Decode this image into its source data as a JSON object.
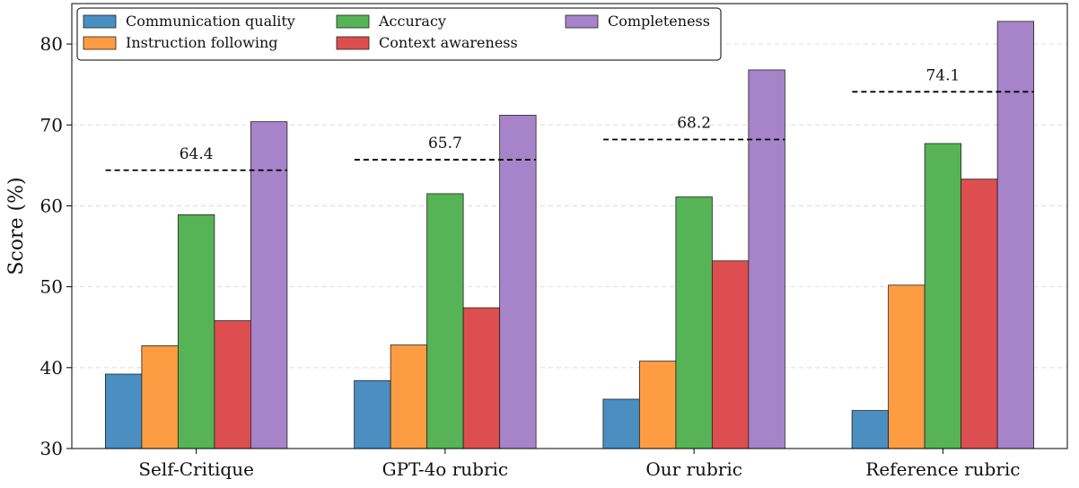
{
  "chart_data": {
    "type": "bar",
    "title": "",
    "xlabel": "",
    "ylabel": "Score (%)",
    "ylim": [
      30,
      85
    ],
    "yticks": [
      30,
      40,
      50,
      60,
      70,
      80
    ],
    "grid": "horizontal dashed",
    "legend_position": "top-left",
    "categories": [
      "Self-Critique",
      "GPT-4o rubric",
      "Our rubric",
      "Reference rubric"
    ],
    "series": [
      {
        "name": "Communication quality",
        "color": "#4a8ec2",
        "values": [
          39.2,
          38.4,
          36.1,
          34.7
        ]
      },
      {
        "name": "Instruction following",
        "color": "#fd9c42",
        "values": [
          42.7,
          42.8,
          40.8,
          50.2
        ]
      },
      {
        "name": "Accuracy",
        "color": "#56b356",
        "values": [
          58.9,
          61.5,
          61.1,
          67.7
        ]
      },
      {
        "name": "Context awareness",
        "color": "#dc4e4f",
        "values": [
          45.8,
          47.4,
          53.2,
          63.3
        ]
      },
      {
        "name": "Completeness",
        "color": "#a783c9",
        "values": [
          70.4,
          71.2,
          76.8,
          82.8
        ]
      }
    ],
    "averages": [
      64.4,
      65.7,
      68.2,
      74.1
    ],
    "average_labels": [
      "64.4",
      "65.7",
      "68.2",
      "74.1"
    ]
  }
}
